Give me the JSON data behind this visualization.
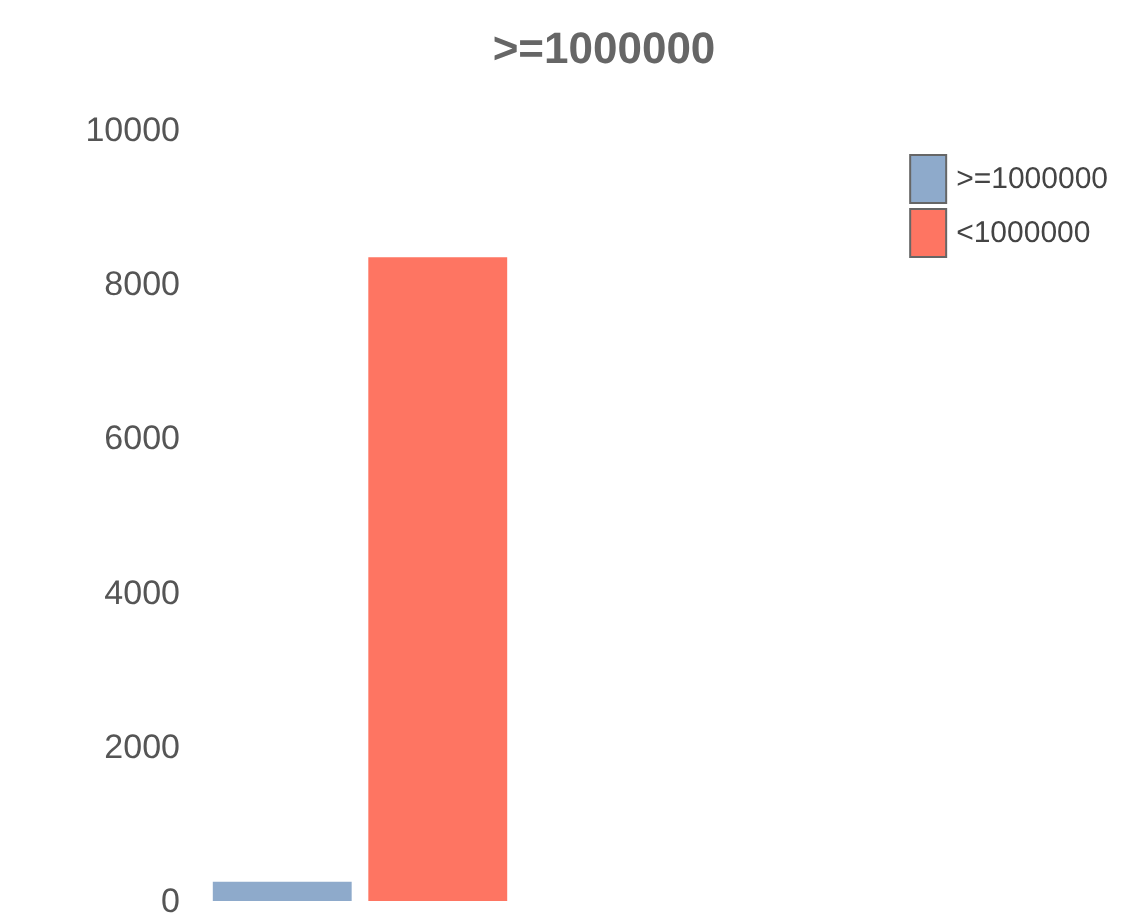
{
  "chart_data": {
    "type": "bar",
    "title": ">=1000000",
    "categories": [
      null
    ],
    "series": [
      {
        "name": ">=1000000",
        "color": "#8eaacb",
        "values": [
          250
        ]
      },
      {
        "name": "<1000000",
        "color": "#fe7562",
        "values": [
          8350
        ]
      }
    ],
    "ylim": [
      0,
      10000
    ],
    "yticks": [
      0,
      2000,
      4000,
      6000,
      8000,
      10000
    ],
    "grid": false,
    "legend": "top right"
  }
}
